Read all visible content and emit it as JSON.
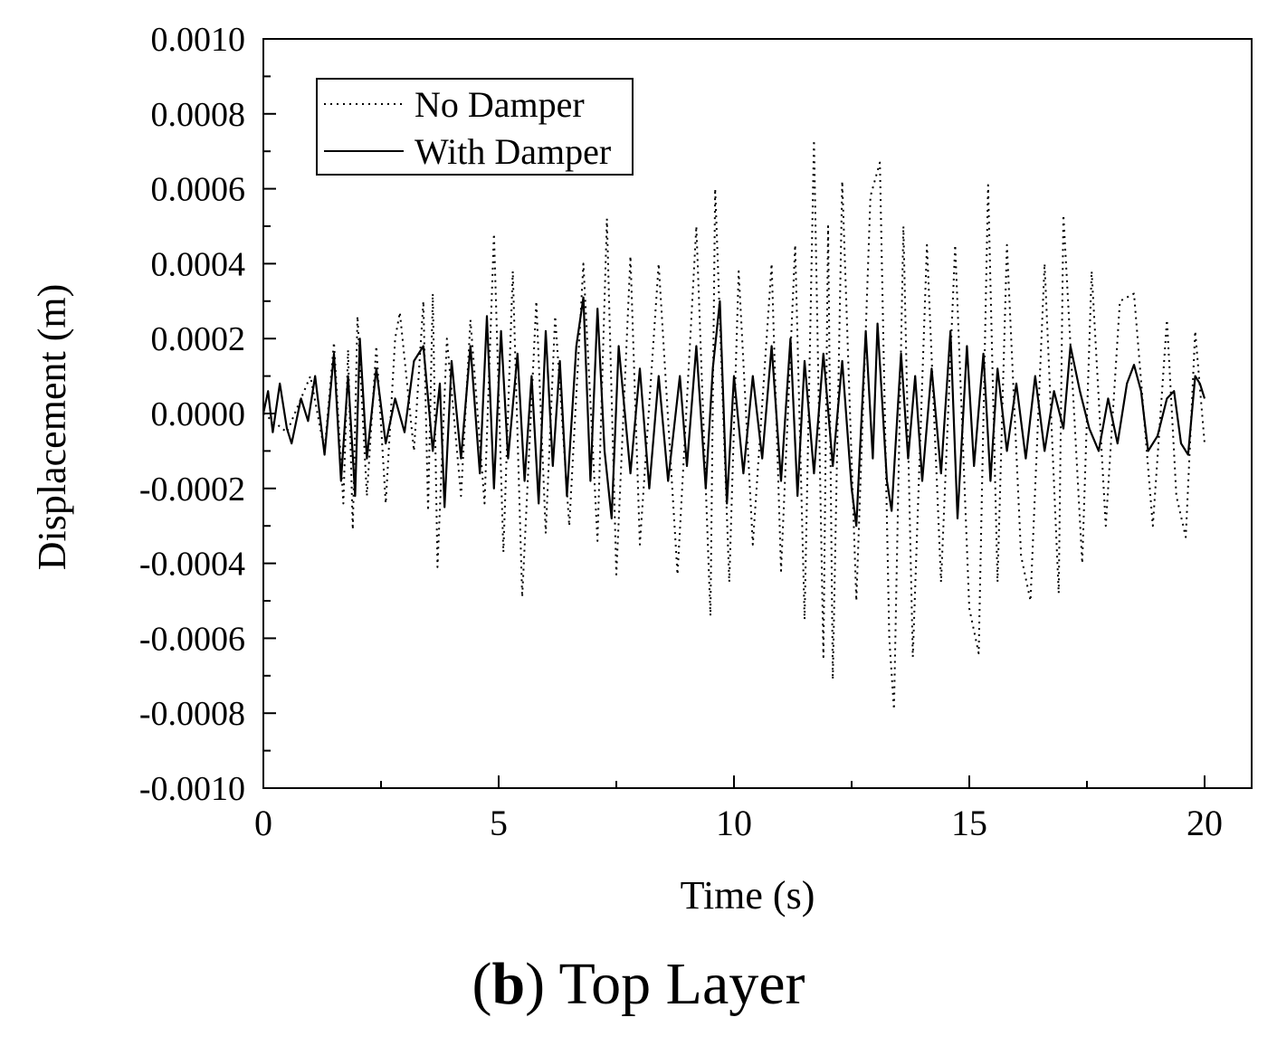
{
  "chart_data": {
    "type": "line",
    "xlabel": "Time (s)",
    "ylabel": "Displacement (m)",
    "xlim": [
      0,
      21
    ],
    "ylim": [
      -0.001,
      0.001
    ],
    "x_ticks": [
      0,
      5,
      10,
      15,
      20
    ],
    "x_tick_labels": [
      "0",
      "5",
      "10",
      "15",
      "20"
    ],
    "y_ticks": [
      0.001,
      0.0008,
      0.0006,
      0.0004,
      0.0002,
      0.0,
      -0.0002,
      -0.0004,
      -0.0006,
      -0.0008,
      -0.001
    ],
    "y_tick_labels": [
      "0.0010",
      "0.0008",
      "0.0006",
      "0.0004",
      "0.0002",
      "0.0000",
      "-0.0002",
      "-0.0004",
      "-0.0006",
      "-0.0008",
      "-0.0010"
    ],
    "grid": false,
    "legend_position": "top-left",
    "series": [
      {
        "name": "No Damper",
        "style": "dotted",
        "color": "#000000",
        "points": [
          [
            0.0,
            0.0
          ],
          [
            0.5,
            -5e-05
          ],
          [
            1.0,
            0.0001
          ],
          [
            1.3,
            -0.0001
          ],
          [
            1.5,
            0.00019
          ],
          [
            1.7,
            -0.00024
          ],
          [
            1.8,
            0.00017
          ],
          [
            1.9,
            -0.00031
          ],
          [
            2.0,
            0.00026
          ],
          [
            2.2,
            -0.00022
          ],
          [
            2.4,
            0.00018
          ],
          [
            2.6,
            -0.00024
          ],
          [
            2.8,
            0.0002
          ],
          [
            2.9,
            0.00027
          ],
          [
            3.2,
            -0.0001
          ],
          [
            3.4,
            0.0003
          ],
          [
            3.5,
            -0.00026
          ],
          [
            3.6,
            0.00032
          ],
          [
            3.7,
            -0.00041
          ],
          [
            3.9,
            0.0002
          ],
          [
            4.2,
            -0.00022
          ],
          [
            4.4,
            0.00025
          ],
          [
            4.7,
            -0.00024
          ],
          [
            4.9,
            0.00048
          ],
          [
            5.1,
            -0.00037
          ],
          [
            5.3,
            0.00038
          ],
          [
            5.5,
            -0.00049
          ],
          [
            5.8,
            0.0003
          ],
          [
            6.0,
            -0.00032
          ],
          [
            6.2,
            0.00026
          ],
          [
            6.5,
            -0.0003
          ],
          [
            6.8,
            0.0004
          ],
          [
            7.1,
            -0.00034
          ],
          [
            7.3,
            0.00052
          ],
          [
            7.5,
            -0.00043
          ],
          [
            7.8,
            0.00042
          ],
          [
            8.0,
            -0.00035
          ],
          [
            8.4,
            0.0004
          ],
          [
            8.8,
            -0.00043
          ],
          [
            9.2,
            0.0005
          ],
          [
            9.5,
            -0.00054
          ],
          [
            9.6,
            0.0006
          ],
          [
            9.9,
            -0.00045
          ],
          [
            10.1,
            0.00038
          ],
          [
            10.4,
            -0.00035
          ],
          [
            10.8,
            0.0004
          ],
          [
            11.0,
            -0.00042
          ],
          [
            11.3,
            0.00045
          ],
          [
            11.5,
            -0.00055
          ],
          [
            11.7,
            0.00073
          ],
          [
            11.9,
            -0.00065
          ],
          [
            12.0,
            0.0005
          ],
          [
            12.1,
            -0.00071
          ],
          [
            12.3,
            0.00062
          ],
          [
            12.6,
            -0.0005
          ],
          [
            12.9,
            0.00058
          ],
          [
            13.1,
            0.00067
          ],
          [
            13.3,
            -0.0006
          ],
          [
            13.4,
            -0.00079
          ],
          [
            13.6,
            0.0005
          ],
          [
            13.8,
            -0.00065
          ],
          [
            14.1,
            0.00045
          ],
          [
            14.4,
            -0.00045
          ],
          [
            14.7,
            0.00045
          ],
          [
            15.0,
            -0.00052
          ],
          [
            15.2,
            -0.00064
          ],
          [
            15.4,
            0.00061
          ],
          [
            15.6,
            -0.00045
          ],
          [
            15.8,
            0.00045
          ],
          [
            16.1,
            -0.00038
          ],
          [
            16.3,
            -0.0005
          ],
          [
            16.6,
            0.0004
          ],
          [
            16.9,
            -0.00048
          ],
          [
            17.0,
            0.00053
          ],
          [
            17.4,
            -0.0004
          ],
          [
            17.6,
            0.00038
          ],
          [
            17.9,
            -0.0003
          ],
          [
            18.2,
            0.0003
          ],
          [
            18.5,
            0.00032
          ],
          [
            18.9,
            -0.0003
          ],
          [
            19.2,
            0.00025
          ],
          [
            19.4,
            -0.00022
          ],
          [
            19.6,
            -0.00033
          ],
          [
            19.8,
            0.00022
          ],
          [
            20.0,
            -8e-05
          ]
        ]
      },
      {
        "name": "With Damper",
        "style": "solid",
        "color": "#000000",
        "points": [
          [
            0.0,
            0.0
          ],
          [
            0.1,
            6e-05
          ],
          [
            0.2,
            -5e-05
          ],
          [
            0.35,
            8e-05
          ],
          [
            0.5,
            -4e-05
          ],
          [
            0.6,
            -8e-05
          ],
          [
            0.8,
            4e-05
          ],
          [
            0.95,
            -2e-05
          ],
          [
            1.1,
            0.0001
          ],
          [
            1.3,
            -0.00011
          ],
          [
            1.5,
            0.00016
          ],
          [
            1.65,
            -0.00018
          ],
          [
            1.8,
            0.0001
          ],
          [
            1.95,
            -0.00022
          ],
          [
            2.05,
            0.0002
          ],
          [
            2.2,
            -0.00012
          ],
          [
            2.4,
            0.00012
          ],
          [
            2.6,
            -8e-05
          ],
          [
            2.8,
            4e-05
          ],
          [
            3.0,
            -5e-05
          ],
          [
            3.2,
            0.00014
          ],
          [
            3.4,
            0.00018
          ],
          [
            3.6,
            -0.0001
          ],
          [
            3.75,
            8e-05
          ],
          [
            3.85,
            -0.00025
          ],
          [
            4.0,
            0.00014
          ],
          [
            4.2,
            -0.00012
          ],
          [
            4.4,
            0.00018
          ],
          [
            4.6,
            -0.00016
          ],
          [
            4.75,
            0.00026
          ],
          [
            4.9,
            -0.0002
          ],
          [
            5.05,
            0.00022
          ],
          [
            5.2,
            -0.00012
          ],
          [
            5.4,
            0.00016
          ],
          [
            5.55,
            -0.00018
          ],
          [
            5.7,
            0.0001
          ],
          [
            5.85,
            -0.00024
          ],
          [
            6.0,
            0.00022
          ],
          [
            6.15,
            -0.00014
          ],
          [
            6.3,
            0.00014
          ],
          [
            6.45,
            -0.00022
          ],
          [
            6.65,
            0.00018
          ],
          [
            6.8,
            0.00031
          ],
          [
            6.95,
            -0.00018
          ],
          [
            7.1,
            0.00028
          ],
          [
            7.25,
            -0.0001
          ],
          [
            7.4,
            -0.00028
          ],
          [
            7.55,
            0.00018
          ],
          [
            7.8,
            -0.00016
          ],
          [
            8.0,
            0.00012
          ],
          [
            8.2,
            -0.0002
          ],
          [
            8.4,
            0.0001
          ],
          [
            8.6,
            -0.00018
          ],
          [
            8.85,
            0.0001
          ],
          [
            9.0,
            -0.00014
          ],
          [
            9.2,
            0.00018
          ],
          [
            9.4,
            -0.0002
          ],
          [
            9.55,
            0.00012
          ],
          [
            9.7,
            0.0003
          ],
          [
            9.85,
            -0.00024
          ],
          [
            10.0,
            0.0001
          ],
          [
            10.2,
            -0.00016
          ],
          [
            10.4,
            0.0001
          ],
          [
            10.6,
            -0.00012
          ],
          [
            10.8,
            0.00018
          ],
          [
            11.0,
            -0.00018
          ],
          [
            11.2,
            0.0002
          ],
          [
            11.35,
            -0.00022
          ],
          [
            11.5,
            0.00014
          ],
          [
            11.7,
            -0.00016
          ],
          [
            11.9,
            0.00016
          ],
          [
            12.1,
            -0.00014
          ],
          [
            12.3,
            0.00014
          ],
          [
            12.5,
            -0.0002
          ],
          [
            12.6,
            -0.0003
          ],
          [
            12.8,
            0.00022
          ],
          [
            12.95,
            -0.00012
          ],
          [
            13.05,
            0.00024
          ],
          [
            13.25,
            -0.00018
          ],
          [
            13.35,
            -0.00026
          ],
          [
            13.55,
            0.00016
          ],
          [
            13.7,
            -0.00012
          ],
          [
            13.85,
            0.0001
          ],
          [
            14.0,
            -0.00018
          ],
          [
            14.2,
            0.00012
          ],
          [
            14.4,
            -0.00016
          ],
          [
            14.6,
            0.00022
          ],
          [
            14.75,
            -0.00028
          ],
          [
            14.95,
            0.00018
          ],
          [
            15.1,
            -0.00014
          ],
          [
            15.3,
            0.00016
          ],
          [
            15.45,
            -0.00018
          ],
          [
            15.6,
            0.00012
          ],
          [
            15.8,
            -0.0001
          ],
          [
            16.0,
            8e-05
          ],
          [
            16.2,
            -0.00012
          ],
          [
            16.4,
            0.0001
          ],
          [
            16.6,
            -0.0001
          ],
          [
            16.8,
            6e-05
          ],
          [
            17.0,
            -4e-05
          ],
          [
            17.15,
            0.00018
          ],
          [
            17.35,
            6e-05
          ],
          [
            17.55,
            -4e-05
          ],
          [
            17.75,
            -0.0001
          ],
          [
            17.95,
            4e-05
          ],
          [
            18.15,
            -8e-05
          ],
          [
            18.35,
            8e-05
          ],
          [
            18.5,
            0.00013
          ],
          [
            18.65,
            6e-05
          ],
          [
            18.8,
            -0.0001
          ],
          [
            19.0,
            -6e-05
          ],
          [
            19.2,
            4e-05
          ],
          [
            19.35,
            6e-05
          ],
          [
            19.5,
            -8e-05
          ],
          [
            19.65,
            -0.00011
          ],
          [
            19.8,
            0.0001
          ],
          [
            19.9,
            8e-05
          ],
          [
            20.0,
            4e-05
          ]
        ]
      }
    ]
  },
  "caption": {
    "open_paren": "(",
    "letter": "b",
    "close_paren": ")",
    "text": " Top Layer"
  }
}
